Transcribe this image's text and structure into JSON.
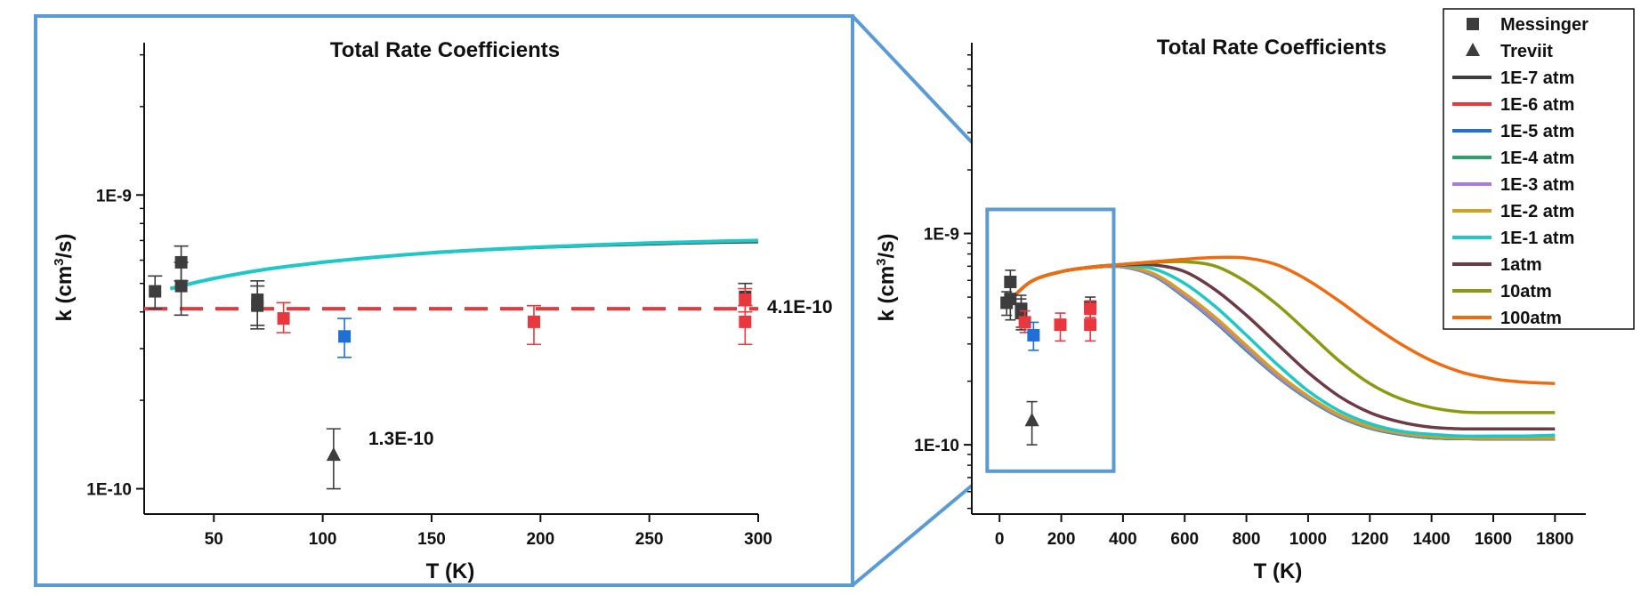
{
  "chart_data": [
    {
      "id": "zoom",
      "type": "scatter",
      "title": "Total Rate Coefficients",
      "xlabel": "T (K)",
      "ylabel_main": "k (cm",
      "ylabel_sup": "3",
      "ylabel_tail": "/s)",
      "xlim": [
        18,
        300
      ],
      "ylim": [
        8.2e-11,
        3.3e-09
      ],
      "yscale": "log",
      "xticks": [
        50,
        100,
        150,
        200,
        250,
        300
      ],
      "xtick_labels": [
        "50",
        "100",
        "150",
        "200",
        "250",
        "300"
      ],
      "yticks": [
        1e-10,
        1e-09
      ],
      "ytick_labels": [
        "1E-10",
        "1E-9"
      ],
      "reference_line": {
        "value": 4.1e-10,
        "label": "4.1E-10",
        "color": "#e8383d"
      },
      "treviit_label": "1.3E-10",
      "curves": [
        {
          "name": "1E-7 atm",
          "color": "#3d3d3d",
          "x": [
            30,
            50,
            75,
            100,
            125,
            150,
            175,
            200,
            225,
            250,
            275,
            300
          ],
          "y": [
            4.8e-10,
            5.2e-10,
            5.6e-10,
            5.9e-10,
            6.15e-10,
            6.35e-10,
            6.5e-10,
            6.62e-10,
            6.72e-10,
            6.8e-10,
            6.87e-10,
            6.92e-10
          ]
        },
        {
          "name": "1E-1 atm",
          "color": "#1ec8c8",
          "x": [
            30,
            50,
            75,
            100,
            125,
            150,
            175,
            200,
            225,
            250,
            275,
            300
          ],
          "y": [
            4.8e-10,
            5.2e-10,
            5.6e-10,
            5.9e-10,
            6.15e-10,
            6.36e-10,
            6.52e-10,
            6.65e-10,
            6.76e-10,
            6.86e-10,
            6.94e-10,
            7e-10
          ]
        }
      ],
      "points": [
        {
          "series": "Messinger",
          "color": "#3d3d3d",
          "x": [
            23,
            35,
            35,
            70,
            70,
            294
          ],
          "y": [
            4.7e-10,
            5.9e-10,
            4.9e-10,
            4.4e-10,
            4.2e-10,
            4.5e-10
          ],
          "lo": [
            4.1e-10,
            5.1e-10,
            3.9e-10,
            3.5e-10,
            3.6e-10,
            4.2e-10
          ],
          "hi": [
            5.3e-10,
            6.7e-10,
            5.9e-10,
            5.1e-10,
            4.9e-10,
            5e-10
          ]
        },
        {
          "series": "Messinger",
          "color": "#e8383d",
          "x": [
            82,
            197,
            294,
            294
          ],
          "y": [
            3.8e-10,
            3.7e-10,
            3.7e-10,
            4.4e-10
          ],
          "lo": [
            3.4e-10,
            3.1e-10,
            3.1e-10,
            4e-10
          ],
          "hi": [
            4.3e-10,
            4.2e-10,
            4.2e-10,
            4.8e-10
          ]
        },
        {
          "series": "Messinger",
          "color": "#1f6fd6",
          "x": [
            110
          ],
          "y": [
            3.3e-10
          ],
          "lo": [
            2.8e-10
          ],
          "hi": [
            3.8e-10
          ]
        },
        {
          "series": "Treviit",
          "color": "#3d3d3d",
          "x": [
            105
          ],
          "y": [
            1.3e-10
          ],
          "lo": [
            1e-10
          ],
          "hi": [
            1.6e-10
          ]
        }
      ]
    },
    {
      "id": "full",
      "type": "line",
      "title": "Total Rate Coefficients",
      "xlabel": "T (K)",
      "ylabel_main": "k (cm",
      "ylabel_sup": "3",
      "ylabel_tail": "/s)",
      "xlim": [
        -90,
        1900
      ],
      "ylim": [
        4.7e-11,
        8e-09
      ],
      "yscale": "log",
      "xticks": [
        0,
        200,
        400,
        600,
        800,
        1000,
        1200,
        1400,
        1600,
        1800
      ],
      "xtick_labels": [
        "0",
        "200",
        "400",
        "600",
        "800",
        "1000",
        "1200",
        "1400",
        "1600",
        "1800"
      ],
      "yticks": [
        1e-10,
        1e-09
      ],
      "ytick_labels": [
        "1E-10",
        "1E-9"
      ],
      "legend_position": "top-right",
      "x": [
        20,
        100,
        200,
        300,
        400,
        500,
        600,
        700,
        800,
        900,
        1000,
        1100,
        1200,
        1300,
        1400,
        1500,
        1600,
        1700,
        1800
      ],
      "series": [
        {
          "name": "1E-7 atm",
          "color": "#3d3d3d",
          "values": [
            4.6e-10,
            5.9e-10,
            6.6e-10,
            6.9e-10,
            6.95e-10,
            6.3e-10,
            5e-10,
            3.8e-10,
            2.8e-10,
            2.1e-10,
            1.65e-10,
            1.36e-10,
            1.2e-10,
            1.12e-10,
            1.08e-10,
            1.07e-10,
            1.065e-10,
            1.065e-10,
            1.065e-10
          ]
        },
        {
          "name": "1E-6 atm",
          "color": "#e8383d",
          "values": [
            4.6e-10,
            5.9e-10,
            6.6e-10,
            6.9e-10,
            6.95e-10,
            6.3e-10,
            5e-10,
            3.8e-10,
            2.8e-10,
            2.1e-10,
            1.65e-10,
            1.36e-10,
            1.2e-10,
            1.12e-10,
            1.08e-10,
            1.07e-10,
            1.065e-10,
            1.065e-10,
            1.065e-10
          ]
        },
        {
          "name": "1E-5 atm",
          "color": "#1f6fd6",
          "values": [
            4.6e-10,
            5.9e-10,
            6.6e-10,
            6.9e-10,
            6.95e-10,
            6.3e-10,
            5e-10,
            3.8e-10,
            2.8e-10,
            2.1e-10,
            1.65e-10,
            1.36e-10,
            1.2e-10,
            1.12e-10,
            1.08e-10,
            1.07e-10,
            1.065e-10,
            1.065e-10,
            1.065e-10
          ]
        },
        {
          "name": "1E-4 atm",
          "color": "#2aa36b",
          "values": [
            4.6e-10,
            5.9e-10,
            6.6e-10,
            6.9e-10,
            6.95e-10,
            6.3e-10,
            5e-10,
            3.8e-10,
            2.8e-10,
            2.1e-10,
            1.65e-10,
            1.36e-10,
            1.2e-10,
            1.12e-10,
            1.08e-10,
            1.07e-10,
            1.065e-10,
            1.065e-10,
            1.065e-10
          ]
        },
        {
          "name": "1E-3 atm",
          "color": "#a77be0",
          "values": [
            4.6e-10,
            5.9e-10,
            6.6e-10,
            6.9e-10,
            6.95e-10,
            6.35e-10,
            5.05e-10,
            3.85e-10,
            2.85e-10,
            2.12e-10,
            1.67e-10,
            1.37e-10,
            1.21e-10,
            1.13e-10,
            1.09e-10,
            1.075e-10,
            1.07e-10,
            1.07e-10,
            1.07e-10
          ]
        },
        {
          "name": "1E-2 atm",
          "color": "#d4a020",
          "values": [
            4.6e-10,
            5.9e-10,
            6.6e-10,
            6.9e-10,
            7e-10,
            6.45e-10,
            5.2e-10,
            4e-10,
            2.95e-10,
            2.18e-10,
            1.7e-10,
            1.39e-10,
            1.22e-10,
            1.14e-10,
            1.095e-10,
            1.08e-10,
            1.075e-10,
            1.075e-10,
            1.075e-10
          ]
        },
        {
          "name": "1E-1 atm",
          "color": "#1ec8c8",
          "values": [
            4.6e-10,
            5.9e-10,
            6.6e-10,
            6.95e-10,
            7.05e-10,
            6.8e-10,
            5.8e-10,
            4.5e-10,
            3.3e-10,
            2.4e-10,
            1.8e-10,
            1.45e-10,
            1.26e-10,
            1.16e-10,
            1.12e-10,
            1.1e-10,
            1.1e-10,
            1.1e-10,
            1.11e-10
          ]
        },
        {
          "name": "1atm",
          "color": "#6e3a44",
          "values": [
            4.6e-10,
            5.9e-10,
            6.6e-10,
            6.95e-10,
            7.1e-10,
            7.1e-10,
            6.6e-10,
            5.4e-10,
            4.1e-10,
            3e-10,
            2.2e-10,
            1.7e-10,
            1.42e-10,
            1.28e-10,
            1.21e-10,
            1.19e-10,
            1.19e-10,
            1.19e-10,
            1.19e-10
          ]
        },
        {
          "name": "10atm",
          "color": "#8c9a12",
          "values": [
            4.6e-10,
            5.9e-10,
            6.6e-10,
            6.95e-10,
            7.15e-10,
            7.3e-10,
            7.35e-10,
            7e-10,
            5.9e-10,
            4.6e-10,
            3.4e-10,
            2.5e-10,
            1.95e-10,
            1.65e-10,
            1.5e-10,
            1.43e-10,
            1.42e-10,
            1.42e-10,
            1.42e-10
          ]
        },
        {
          "name": "100atm",
          "color": "#f26a10",
          "values": [
            4.6e-10,
            5.9e-10,
            6.6e-10,
            6.95e-10,
            7.15e-10,
            7.35e-10,
            7.55e-10,
            7.7e-10,
            7.65e-10,
            7.1e-10,
            6e-10,
            4.8e-10,
            3.75e-10,
            3e-10,
            2.5e-10,
            2.2e-10,
            2.05e-10,
            1.98e-10,
            1.95e-10
          ]
        }
      ],
      "points": [
        {
          "series": "Messinger",
          "color": "#3d3d3d",
          "x": [
            23,
            35,
            35,
            70,
            70,
            294
          ],
          "y": [
            4.7e-10,
            5.9e-10,
            4.9e-10,
            4.4e-10,
            4.2e-10,
            4.5e-10
          ],
          "lo": [
            4.1e-10,
            5.1e-10,
            3.9e-10,
            3.5e-10,
            3.6e-10,
            4.2e-10
          ],
          "hi": [
            5.3e-10,
            6.7e-10,
            5.9e-10,
            5.1e-10,
            4.9e-10,
            5e-10
          ]
        },
        {
          "series": "Messinger",
          "color": "#e8383d",
          "x": [
            82,
            197,
            294,
            294
          ],
          "y": [
            3.8e-10,
            3.7e-10,
            3.7e-10,
            4.4e-10
          ],
          "lo": [
            3.4e-10,
            3.1e-10,
            3.1e-10,
            4e-10
          ],
          "hi": [
            4.3e-10,
            4.2e-10,
            4.2e-10,
            4.8e-10
          ]
        },
        {
          "series": "Messinger",
          "color": "#1f6fd6",
          "x": [
            110
          ],
          "y": [
            3.3e-10
          ],
          "lo": [
            2.8e-10
          ],
          "hi": [
            3.8e-10
          ]
        },
        {
          "series": "Treviit",
          "color": "#3d3d3d",
          "x": [
            105
          ],
          "y": [
            1.3e-10
          ],
          "lo": [
            1e-10
          ],
          "hi": [
            1.6e-10
          ]
        }
      ],
      "legend": [
        {
          "label": "Messinger",
          "marker": "square",
          "color": "#3d3d3d"
        },
        {
          "label": "Treviit",
          "marker": "triangle",
          "color": "#3d3d3d"
        },
        {
          "label": "1E-7 atm",
          "marker": "line",
          "color": "#3d3d3d"
        },
        {
          "label": "1E-6 atm",
          "marker": "line",
          "color": "#e8383d"
        },
        {
          "label": "1E-5 atm",
          "marker": "line",
          "color": "#1f6fd6"
        },
        {
          "label": "1E-4 atm",
          "marker": "line",
          "color": "#2aa36b"
        },
        {
          "label": "1E-3 atm",
          "marker": "line",
          "color": "#a77be0"
        },
        {
          "label": "1E-2 atm",
          "marker": "line",
          "color": "#d4a020"
        },
        {
          "label": "1E-1 atm",
          "marker": "line",
          "color": "#1ec8c8"
        },
        {
          "label": "1atm",
          "marker": "line",
          "color": "#6e3a44"
        },
        {
          "label": "10atm",
          "marker": "line",
          "color": "#8c9a12"
        },
        {
          "label": "100atm",
          "marker": "line",
          "color": "#f26a10"
        }
      ],
      "zoom_region": {
        "x": [
          -40,
          370
        ],
        "y": [
          7.5e-11,
          1.3e-09
        ],
        "color": "#5b9bd5"
      }
    }
  ]
}
